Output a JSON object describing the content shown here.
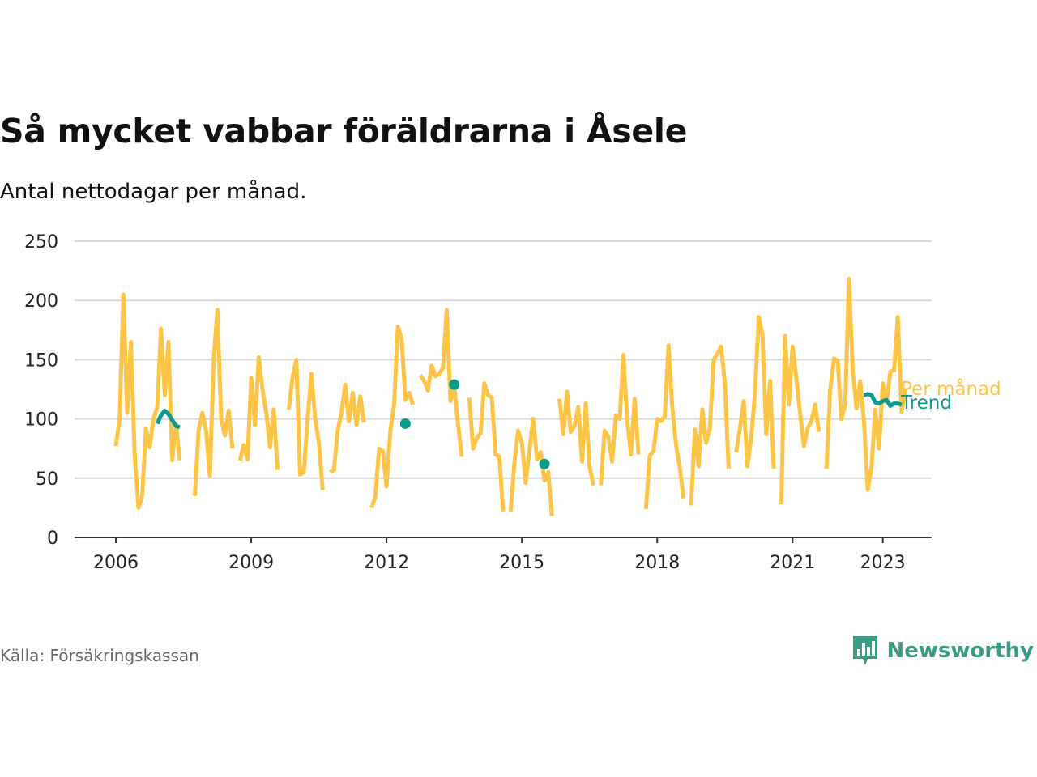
{
  "header": {
    "title": "Så mycket vabbar föräldrarna i Åsele",
    "subtitle": "Antal nettodagar per månad."
  },
  "footer": {
    "source": "Källa: Försäkringskassan",
    "brand": "Newsworthy",
    "brand_icon": "bar-chart-speech-bubble-icon"
  },
  "colors": {
    "monthly": "#fdc548",
    "trend": "#0b9b8a",
    "grid": "#d9d9d9",
    "axis": "#333333",
    "brand": "#3a9a86"
  },
  "chart_data": {
    "type": "line",
    "title": "Så mycket vabbar föräldrarna i Åsele",
    "subtitle": "Antal nettodagar per månad.",
    "xlabel": "",
    "ylabel": "",
    "xlim": [
      "2005-02",
      "2024-02"
    ],
    "ylim": [
      0,
      250
    ],
    "x_ticks": [
      {
        "value": "2006-01",
        "label": "2006"
      },
      {
        "value": "2009-01",
        "label": "2009"
      },
      {
        "value": "2012-01",
        "label": "2012"
      },
      {
        "value": "2015-01",
        "label": "2015"
      },
      {
        "value": "2018-01",
        "label": "2018"
      },
      {
        "value": "2021-01",
        "label": "2021"
      },
      {
        "value": "2023-01",
        "label": "2023"
      }
    ],
    "y_ticks": [
      0,
      50,
      100,
      150,
      200,
      250
    ],
    "grid": true,
    "legend": "inline labels at right end of lines",
    "series": [
      {
        "name": "Per månad",
        "color": "#fdc548",
        "points": [
          [
            "2006-01",
            77
          ],
          [
            "2006-02",
            100
          ],
          [
            "2006-03",
            205
          ],
          [
            "2006-04",
            105
          ],
          [
            "2006-05",
            165
          ],
          [
            "2006-06",
            70
          ],
          [
            "2006-07",
            25
          ],
          [
            "2006-08",
            35
          ],
          [
            "2006-09",
            92
          ],
          [
            "2006-10",
            76
          ],
          [
            "2006-11",
            100
          ],
          [
            "2006-12",
            110
          ],
          [
            "2007-01",
            176
          ],
          [
            "2007-02",
            120
          ],
          [
            "2007-03",
            165
          ],
          [
            "2007-04",
            65
          ],
          [
            "2007-05",
            95
          ],
          [
            "2007-06",
            65
          ],
          [
            "2007-10",
            35
          ],
          [
            "2007-11",
            90
          ],
          [
            "2007-12",
            105
          ],
          [
            "2008-01",
            90
          ],
          [
            "2008-02",
            52
          ],
          [
            "2008-03",
            150
          ],
          [
            "2008-04",
            192
          ],
          [
            "2008-05",
            100
          ],
          [
            "2008-06",
            86
          ],
          [
            "2008-07",
            107
          ],
          [
            "2008-08",
            75
          ],
          [
            "2008-10",
            65
          ],
          [
            "2008-11",
            78
          ],
          [
            "2008-12",
            66
          ],
          [
            "2009-01",
            135
          ],
          [
            "2009-02",
            95
          ],
          [
            "2009-03",
            152
          ],
          [
            "2009-04",
            125
          ],
          [
            "2009-05",
            105
          ],
          [
            "2009-06",
            76
          ],
          [
            "2009-07",
            108
          ],
          [
            "2009-08",
            57
          ],
          [
            "2009-11",
            108
          ],
          [
            "2009-12",
            135
          ],
          [
            "2010-01",
            150
          ],
          [
            "2010-02",
            53
          ],
          [
            "2010-03",
            55
          ],
          [
            "2010-04",
            100
          ],
          [
            "2010-05",
            138
          ],
          [
            "2010-06",
            100
          ],
          [
            "2010-07",
            80
          ],
          [
            "2010-08",
            40
          ],
          [
            "2010-10",
            55
          ],
          [
            "2010-11",
            57
          ],
          [
            "2010-12",
            90
          ],
          [
            "2011-01",
            105
          ],
          [
            "2011-02",
            129
          ],
          [
            "2011-03",
            98
          ],
          [
            "2011-04",
            122
          ],
          [
            "2011-05",
            95
          ],
          [
            "2011-06",
            119
          ],
          [
            "2011-07",
            97
          ],
          [
            "2011-09",
            25
          ],
          [
            "2011-10",
            34
          ],
          [
            "2011-11",
            75
          ],
          [
            "2011-12",
            73
          ],
          [
            "2012-01",
            43
          ],
          [
            "2012-02",
            90
          ],
          [
            "2012-03",
            112
          ],
          [
            "2012-04",
            178
          ],
          [
            "2012-05",
            168
          ],
          [
            "2012-06",
            116
          ],
          [
            "2012-07",
            122
          ],
          [
            "2012-08",
            112
          ],
          [
            "2012-10",
            137
          ],
          [
            "2012-11",
            132
          ],
          [
            "2012-12",
            124
          ],
          [
            "2013-01",
            145
          ],
          [
            "2013-02",
            136
          ],
          [
            "2013-03",
            138
          ],
          [
            "2013-04",
            143
          ],
          [
            "2013-05",
            192
          ],
          [
            "2013-06",
            115
          ],
          [
            "2013-07",
            128
          ],
          [
            "2013-08",
            96
          ],
          [
            "2013-09",
            68
          ],
          [
            "2013-11",
            118
          ],
          [
            "2013-12",
            75
          ],
          [
            "2014-01",
            84
          ],
          [
            "2014-02",
            88
          ],
          [
            "2014-03",
            130
          ],
          [
            "2014-04",
            120
          ],
          [
            "2014-05",
            118
          ],
          [
            "2014-06",
            70
          ],
          [
            "2014-07",
            68
          ],
          [
            "2014-08",
            22
          ],
          [
            "2014-10",
            22
          ],
          [
            "2014-11",
            63
          ],
          [
            "2014-12",
            90
          ],
          [
            "2015-01",
            80
          ],
          [
            "2015-02",
            46
          ],
          [
            "2015-03",
            73
          ],
          [
            "2015-04",
            100
          ],
          [
            "2015-05",
            66
          ],
          [
            "2015-06",
            72
          ],
          [
            "2015-07",
            48
          ],
          [
            "2015-08",
            55
          ],
          [
            "2015-09",
            18
          ],
          [
            "2015-11",
            117
          ],
          [
            "2015-12",
            87
          ],
          [
            "2016-01",
            123
          ],
          [
            "2016-02",
            89
          ],
          [
            "2016-03",
            94
          ],
          [
            "2016-04",
            110
          ],
          [
            "2016-05",
            64
          ],
          [
            "2016-06",
            113
          ],
          [
            "2016-07",
            60
          ],
          [
            "2016-08",
            44
          ],
          [
            "2016-10",
            44
          ],
          [
            "2016-11",
            90
          ],
          [
            "2016-12",
            85
          ],
          [
            "2017-01",
            64
          ],
          [
            "2017-02",
            103
          ],
          [
            "2017-03",
            100
          ],
          [
            "2017-04",
            154
          ],
          [
            "2017-05",
            100
          ],
          [
            "2017-06",
            70
          ],
          [
            "2017-07",
            117
          ],
          [
            "2017-08",
            70
          ],
          [
            "2017-10",
            24
          ],
          [
            "2017-11",
            69
          ],
          [
            "2017-12",
            73
          ],
          [
            "2018-01",
            100
          ],
          [
            "2018-02",
            98
          ],
          [
            "2018-03",
            102
          ],
          [
            "2018-04",
            162
          ],
          [
            "2018-05",
            110
          ],
          [
            "2018-06",
            78
          ],
          [
            "2018-07",
            59
          ],
          [
            "2018-08",
            33
          ],
          [
            "2018-10",
            27
          ],
          [
            "2018-11",
            91
          ],
          [
            "2018-12",
            60
          ],
          [
            "2019-01",
            108
          ],
          [
            "2019-02",
            80
          ],
          [
            "2019-03",
            92
          ],
          [
            "2019-04",
            150
          ],
          [
            "2019-05",
            155
          ],
          [
            "2019-06",
            161
          ],
          [
            "2019-07",
            130
          ],
          [
            "2019-08",
            58
          ],
          [
            "2019-10",
            72
          ],
          [
            "2019-11",
            92
          ],
          [
            "2019-12",
            115
          ],
          [
            "2020-01",
            60
          ],
          [
            "2020-02",
            84
          ],
          [
            "2020-03",
            122
          ],
          [
            "2020-04",
            186
          ],
          [
            "2020-05",
            171
          ],
          [
            "2020-06",
            87
          ],
          [
            "2020-07",
            132
          ],
          [
            "2020-08",
            58
          ],
          [
            "2020-10",
            28
          ],
          [
            "2020-11",
            170
          ],
          [
            "2020-12",
            112
          ],
          [
            "2021-01",
            161
          ],
          [
            "2021-02",
            135
          ],
          [
            "2021-03",
            105
          ],
          [
            "2021-04",
            77
          ],
          [
            "2021-05",
            92
          ],
          [
            "2021-06",
            98
          ],
          [
            "2021-07",
            112
          ],
          [
            "2021-08",
            89
          ],
          [
            "2021-10",
            58
          ],
          [
            "2021-11",
            125
          ],
          [
            "2021-12",
            151
          ],
          [
            "2022-01",
            149
          ],
          [
            "2022-02",
            100
          ],
          [
            "2022-03",
            112
          ],
          [
            "2022-04",
            218
          ],
          [
            "2022-05",
            140
          ],
          [
            "2022-06",
            109
          ],
          [
            "2022-07",
            132
          ],
          [
            "2022-08",
            97
          ],
          [
            "2022-09",
            40
          ],
          [
            "2022-10",
            60
          ],
          [
            "2022-11",
            108
          ],
          [
            "2022-12",
            75
          ],
          [
            "2023-01",
            130
          ],
          [
            "2023-02",
            114
          ],
          [
            "2023-03",
            140
          ],
          [
            "2023-04",
            141
          ],
          [
            "2023-05",
            186
          ],
          [
            "2023-06",
            106
          ],
          [
            "2023-07",
            126
          ]
        ]
      },
      {
        "name": "Trend",
        "color": "#0b9b8a",
        "points": [
          [
            "2006-12",
            96
          ],
          [
            "2007-01",
            103
          ],
          [
            "2007-02",
            107
          ],
          [
            "2007-03",
            104
          ],
          [
            "2007-04",
            99
          ],
          [
            "2007-05",
            94
          ],
          [
            "2007-06",
            93
          ],
          [
            "2012-06",
            96
          ],
          [
            "2013-07",
            129
          ],
          [
            "2015-07",
            62
          ],
          [
            "2022-08",
            120
          ],
          [
            "2022-09",
            121
          ],
          [
            "2022-10",
            120
          ],
          [
            "2022-11",
            114
          ],
          [
            "2022-12",
            113
          ],
          [
            "2023-01",
            115
          ],
          [
            "2023-02",
            116
          ],
          [
            "2023-03",
            111
          ],
          [
            "2023-04",
            113
          ],
          [
            "2023-05",
            113
          ],
          [
            "2023-06",
            112
          ]
        ]
      }
    ],
    "annotations": [
      {
        "series": "Per månad",
        "text": "Per månad"
      },
      {
        "series": "Trend",
        "text": "Trend"
      }
    ]
  }
}
